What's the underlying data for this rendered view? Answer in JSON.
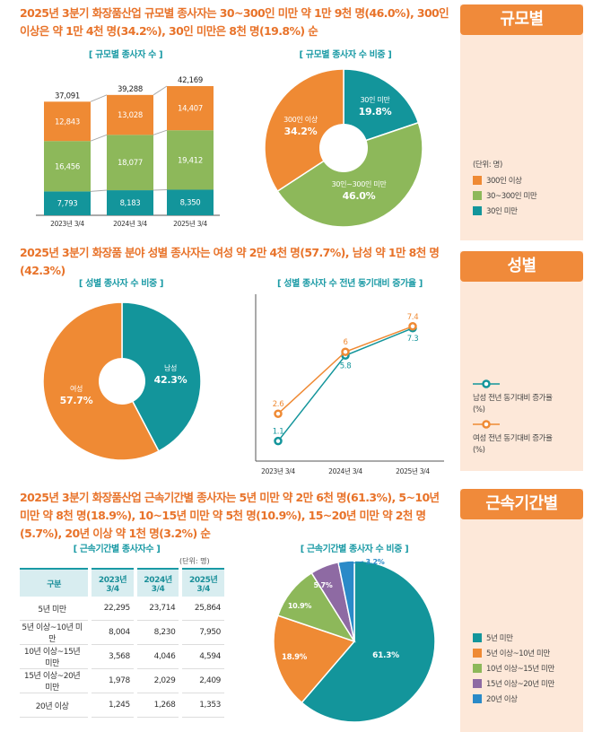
{
  "headlines": {
    "size": "2025년 3분기 화장품산업 규모별 종사자는 30~300인 미만 약 1만 9천 명(46.0%), 300인 이상은 약 1만 4천 명(34.2%), 30인 미만은 8천 명(19.8%) 순",
    "gender": "2025년 3분기 화장품 분야 성별 종사자는 여성 약 2만 4천 명(57.7%), 남성 약 1만 8천 명(42.3%)",
    "tenure": "2025년 3분기 화장품산업 근속기간별 종사자는 5년 미만 약 2만 6천 명(61.3%), 5~10년 미만 약 8천 명(18.9%), 10~15년 미만 약 5천 명(10.9%), 15~20년 미만 약 2천 명(5.7%), 20년 이상 약 1천 명(3.2%) 순"
  },
  "sidebar": {
    "size": {
      "title": "규모별",
      "unit": "(단위: 명)",
      "legend": [
        "300인 이상",
        "30~300인 미만",
        "30인 미만"
      ]
    },
    "gender": {
      "title": "성별",
      "legend": [
        "남성 전년 동기대비 증가율(%)",
        "여성 전년 동기대비 증가율(%)"
      ]
    },
    "tenure": {
      "title": "근속기간별",
      "legend": [
        "5년 미만",
        "5년 이상~10년 미만",
        "10년 이상~15년 미만",
        "15년 이상~20년 미만",
        "20년 이상"
      ]
    }
  },
  "colors": {
    "teal": "#13959b",
    "green": "#8db85a",
    "orange": "#ef8a34",
    "purple": "#8e6aa3",
    "blue": "#2a8ac8"
  },
  "chart_data": [
    {
      "type": "bar",
      "stacked": true,
      "title": "[ 규모별 종사자 수 ]",
      "categories": [
        "2023년 3/4",
        "2024년 3/4",
        "2025년 3/4"
      ],
      "series": [
        {
          "name": "30인 미만",
          "values": [
            7793,
            8183,
            8350
          ]
        },
        {
          "name": "30~300인 미만",
          "values": [
            16456,
            18077,
            19412
          ]
        },
        {
          "name": "300인 이상",
          "values": [
            12843,
            13028,
            14407
          ]
        }
      ],
      "totals": [
        "37,091",
        "39,288",
        "42,169"
      ],
      "labels": [
        [
          "7,793",
          "8,183",
          "8,350"
        ],
        [
          "16,456",
          "18,077",
          "19,412"
        ],
        [
          "12,843",
          "13,028",
          "14,407"
        ]
      ]
    },
    {
      "type": "pie",
      "title": "[ 규모별 종사자 수 비중 ]",
      "slices": [
        {
          "label": "30인 미만",
          "value": 19.8,
          "text": "19.8%"
        },
        {
          "label": "30인~300인 미만",
          "value": 46.0,
          "text": "46.0%"
        },
        {
          "label": "300인 이상",
          "value": 34.2,
          "text": "34.2%"
        }
      ]
    },
    {
      "type": "pie",
      "title": "[ 성별 종사자 수 비중 ]",
      "slices": [
        {
          "label": "남성",
          "value": 42.3,
          "text": "42.3%"
        },
        {
          "label": "여성",
          "value": 57.7,
          "text": "57.7%"
        }
      ]
    },
    {
      "type": "line",
      "title": "[ 성별 종사자 수 전년 동기대비 증가율 ]",
      "categories": [
        "2023년 3/4",
        "2024년 3/4",
        "2025년 3/4"
      ],
      "series": [
        {
          "name": "남성 전년 동기대비 증가율(%)",
          "values": [
            1.1,
            5.8,
            7.3
          ]
        },
        {
          "name": "여성 전년 동기대비 증가율(%)",
          "values": [
            2.6,
            6.0,
            7.4
          ]
        }
      ]
    },
    {
      "type": "table",
      "title": "[ 근속기간별 종사자수 ]",
      "unit": "(단위: 명)",
      "columns": [
        "구분",
        "2023년 3/4",
        "2024년 3/4",
        "2025년 3/4"
      ],
      "rows": [
        [
          "5년 미만",
          "22,295",
          "23,714",
          "25,864"
        ],
        [
          "5년 이상~10년 미만",
          "8,004",
          "8,230",
          "7,950"
        ],
        [
          "10년 이상~15년 미만",
          "3,568",
          "4,046",
          "4,594"
        ],
        [
          "15년 이상~20년 미만",
          "1,978",
          "2,029",
          "2,409"
        ],
        [
          "20년 이상",
          "1,245",
          "1,268",
          "1,353"
        ]
      ]
    },
    {
      "type": "pie",
      "title": "[ 근속기간별 종사자 수 비중 ]",
      "slices": [
        {
          "label": "5년 미만",
          "value": 61.3,
          "text": "61.3%"
        },
        {
          "label": "5년 이상~10년 미만",
          "value": 18.9,
          "text": "18.9%"
        },
        {
          "label": "10년 이상~15년 미만",
          "value": 10.9,
          "text": "10.9%"
        },
        {
          "label": "15년 이상~20년 미만",
          "value": 5.7,
          "text": "5.7%"
        },
        {
          "label": "20년 이상",
          "value": 3.2,
          "text": "3.2%"
        }
      ]
    }
  ]
}
